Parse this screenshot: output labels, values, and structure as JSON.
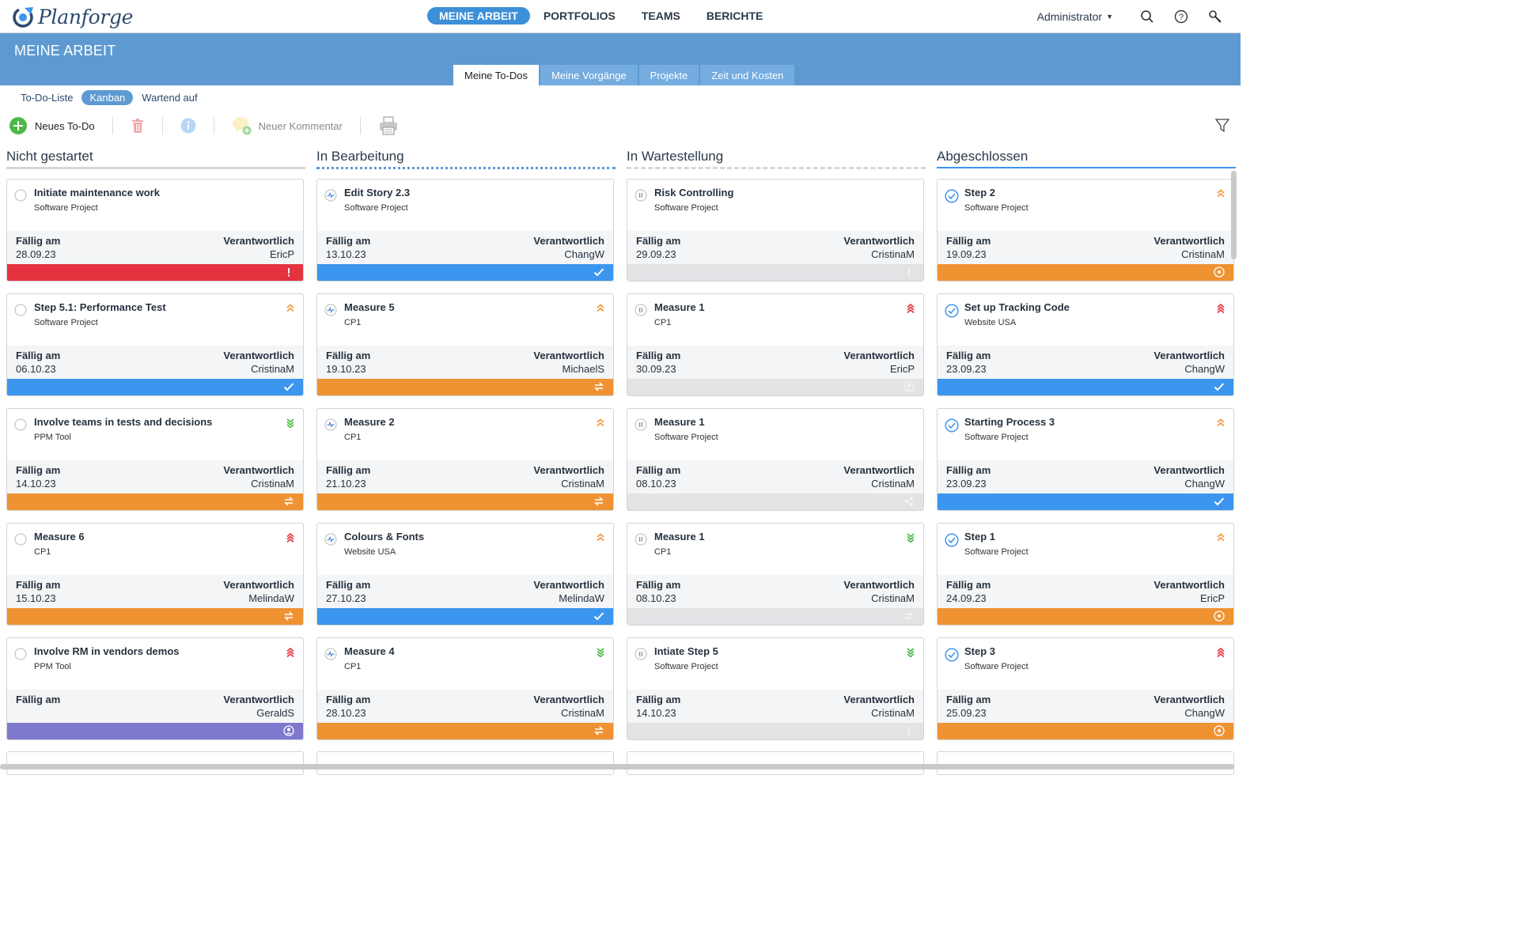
{
  "app": {
    "name": "Planforge"
  },
  "nav": [
    {
      "label": "MEINE ARBEIT",
      "active": true
    },
    {
      "label": "PORTFOLIOS",
      "active": false
    },
    {
      "label": "TEAMS",
      "active": false
    },
    {
      "label": "BERICHTE",
      "active": false
    }
  ],
  "user": {
    "name": "Administrator"
  },
  "page": {
    "title": "MEINE ARBEIT"
  },
  "tabs": [
    {
      "label": "Meine To-Dos",
      "active": true
    },
    {
      "label": "Meine Vorgänge",
      "active": false
    },
    {
      "label": "Projekte",
      "active": false
    },
    {
      "label": "Zeit und Kosten",
      "active": false
    }
  ],
  "subtabs": [
    {
      "label": "To-Do-Liste",
      "active": false
    },
    {
      "label": "Kanban",
      "active": true
    },
    {
      "label": "Wartend auf",
      "active": false
    }
  ],
  "toolbar": {
    "new_todo": "Neues To-Do",
    "new_comment": "Neuer Kommentar"
  },
  "labels": {
    "due": "Fällig am",
    "owner": "Verantwortlich"
  },
  "colors": {
    "red": "#e4323f",
    "blue": "#3c95ef",
    "orange": "#ef9332",
    "grey": "#e1e3e5",
    "purple": "#7e79cd",
    "header": "#5e9ad1"
  },
  "columns": [
    {
      "title": "Nicht gestartet",
      "line": "grey",
      "status_icon": "circle-icon",
      "cards": [
        {
          "title": "Initiate maintenance work",
          "project": "Software Project",
          "due": "28.09.23",
          "owner": "EricP",
          "prio": "none",
          "bar": "red",
          "bar_icon": "exclamation-icon"
        },
        {
          "title": "Step 5.1: Performance Test",
          "project": "Software Project",
          "due": "06.10.23",
          "owner": "CristinaM",
          "prio": "high",
          "bar": "blue",
          "bar_icon": "check-icon"
        },
        {
          "title": "Involve teams in tests and decisions",
          "project": "PPM Tool",
          "due": "14.10.23",
          "owner": "CristinaM",
          "prio": "low",
          "bar": "orange",
          "bar_icon": "exchange-icon"
        },
        {
          "title": "Measure 6",
          "project": "CP1",
          "due": "15.10.23",
          "owner": "MelindaW",
          "prio": "critical",
          "bar": "orange",
          "bar_icon": "exchange-icon"
        },
        {
          "title": "Involve RM in vendors demos",
          "project": "PPM Tool",
          "due": "",
          "owner": "GeraldS",
          "prio": "critical",
          "bar": "purple",
          "bar_icon": "user-circle-icon"
        }
      ]
    },
    {
      "title": "In Bearbeitung",
      "line": "dotted",
      "status_icon": "activity-icon",
      "cards": [
        {
          "title": "Edit Story 2.3",
          "project": "Software Project",
          "due": "13.10.23",
          "owner": "ChangW",
          "prio": "none",
          "bar": "blue",
          "bar_icon": "check-icon"
        },
        {
          "title": "Measure 5",
          "project": "CP1",
          "due": "19.10.23",
          "owner": "MichaelS",
          "prio": "high",
          "bar": "orange",
          "bar_icon": "exchange-icon"
        },
        {
          "title": "Measure 2",
          "project": "CP1",
          "due": "21.10.23",
          "owner": "CristinaM",
          "prio": "high",
          "bar": "orange",
          "bar_icon": "exchange-icon"
        },
        {
          "title": "Colours & Fonts",
          "project": "Website USA",
          "due": "27.10.23",
          "owner": "MelindaW",
          "prio": "high",
          "bar": "blue",
          "bar_icon": "check-icon"
        },
        {
          "title": "Measure 4",
          "project": "CP1",
          "due": "28.10.23",
          "owner": "CristinaM",
          "prio": "low",
          "bar": "orange",
          "bar_icon": "exchange-icon"
        }
      ]
    },
    {
      "title": "In Wartestellung",
      "line": "dashed",
      "status_icon": "pause-icon",
      "cards": [
        {
          "title": "Risk Controlling",
          "project": "Software Project",
          "due": "29.09.23",
          "owner": "CristinaM",
          "prio": "none",
          "bar": "grey",
          "bar_icon": "exclamation-icon"
        },
        {
          "title": "Measure 1",
          "project": "CP1",
          "due": "30.09.23",
          "owner": "EricP",
          "prio": "critical",
          "bar": "grey",
          "bar_icon": "user-circle-icon"
        },
        {
          "title": "Measure 1",
          "project": "Software Project",
          "due": "08.10.23",
          "owner": "CristinaM",
          "prio": "none",
          "bar": "grey",
          "bar_icon": "share-icon"
        },
        {
          "title": "Measure 1",
          "project": "CP1",
          "due": "08.10.23",
          "owner": "CristinaM",
          "prio": "low",
          "bar": "grey",
          "bar_icon": "exchange-icon"
        },
        {
          "title": "Intiate Step 5",
          "project": "Software Project",
          "due": "14.10.23",
          "owner": "CristinaM",
          "prio": "low",
          "bar": "grey",
          "bar_icon": "exclamation-icon"
        }
      ]
    },
    {
      "title": "Abgeschlossen",
      "line": "blue",
      "status_icon": "check-circle-icon",
      "cards": [
        {
          "title": "Step 2",
          "project": "Software Project",
          "due": "19.09.23",
          "owner": "CristinaM",
          "prio": "high",
          "bar": "orange",
          "bar_icon": "target-icon"
        },
        {
          "title": "Set up Tracking Code",
          "project": "Website USA",
          "due": "23.09.23",
          "owner": "ChangW",
          "prio": "critical",
          "bar": "blue",
          "bar_icon": "check-icon"
        },
        {
          "title": "Starting Process 3",
          "project": "Software Project",
          "due": "23.09.23",
          "owner": "ChangW",
          "prio": "high",
          "bar": "blue",
          "bar_icon": "check-icon"
        },
        {
          "title": "Step 1",
          "project": "Software Project",
          "due": "24.09.23",
          "owner": "EricP",
          "prio": "high",
          "bar": "orange",
          "bar_icon": "target-icon"
        },
        {
          "title": "Step 3",
          "project": "Software Project",
          "due": "25.09.23",
          "owner": "ChangW",
          "prio": "critical",
          "bar": "orange",
          "bar_icon": "target-icon"
        }
      ]
    }
  ]
}
